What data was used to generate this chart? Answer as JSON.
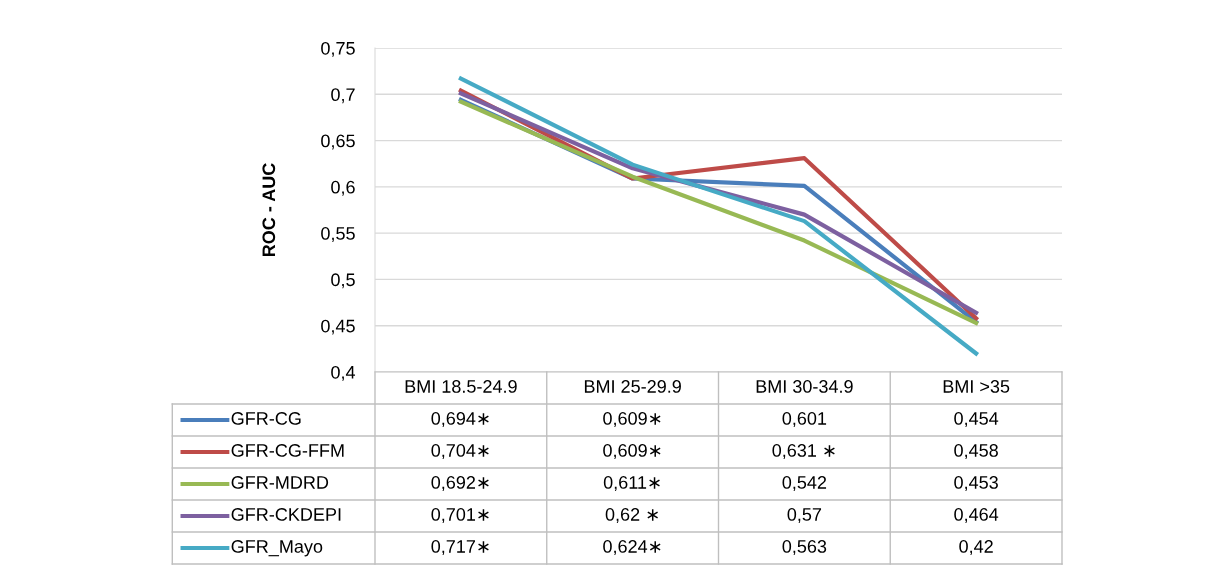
{
  "chart_data": {
    "type": "line",
    "ylabel": "ROC - AUC",
    "categories": [
      "BMI 18.5-24.9",
      "BMI 25-29.9",
      "BMI 30-34.9",
      "BMI >35"
    ],
    "series": [
      {
        "name": "GFR-CG",
        "color": "#4a7ebb",
        "values": [
          0.694,
          0.609,
          0.601,
          0.454
        ],
        "value_labels": [
          "0,694∗",
          "0,609∗",
          "0,601",
          "0,454"
        ]
      },
      {
        "name": "GFR-CG-FFM",
        "color": "#be4b48",
        "values": [
          0.704,
          0.609,
          0.631,
          0.458
        ],
        "value_labels": [
          "0,704∗",
          "0,609∗",
          "0,631 ∗",
          "0,458"
        ]
      },
      {
        "name": "GFR-MDRD",
        "color": "#98b954",
        "values": [
          0.692,
          0.611,
          0.542,
          0.453
        ],
        "value_labels": [
          "0,692∗",
          "0,611∗",
          "0,542",
          "0,453"
        ]
      },
      {
        "name": "GFR-CKDEPI",
        "color": "#7d60a0",
        "values": [
          0.701,
          0.62,
          0.57,
          0.464
        ],
        "value_labels": [
          "0,701∗",
          "0,62 ∗",
          "0,57",
          "0,464"
        ]
      },
      {
        "name": "GFR_Mayo",
        "color": "#46aac5",
        "values": [
          0.717,
          0.624,
          0.563,
          0.42
        ],
        "value_labels": [
          "0,717∗",
          "0,624∗",
          "0,563",
          "0,42"
        ]
      }
    ],
    "ylim": [
      0.4,
      0.75
    ],
    "yticks": [
      {
        "value": 0.4,
        "label": "0,4"
      },
      {
        "value": 0.45,
        "label": "0,45"
      },
      {
        "value": 0.5,
        "label": "0,5"
      },
      {
        "value": 0.55,
        "label": "0,55"
      },
      {
        "value": 0.6,
        "label": "0,6"
      },
      {
        "value": 0.65,
        "label": "0,65"
      },
      {
        "value": 0.7,
        "label": "0,7"
      },
      {
        "value": 0.75,
        "label": "0,75"
      }
    ],
    "grid": "y",
    "legend": "bottom",
    "marker": "none",
    "line_style": "solid"
  }
}
